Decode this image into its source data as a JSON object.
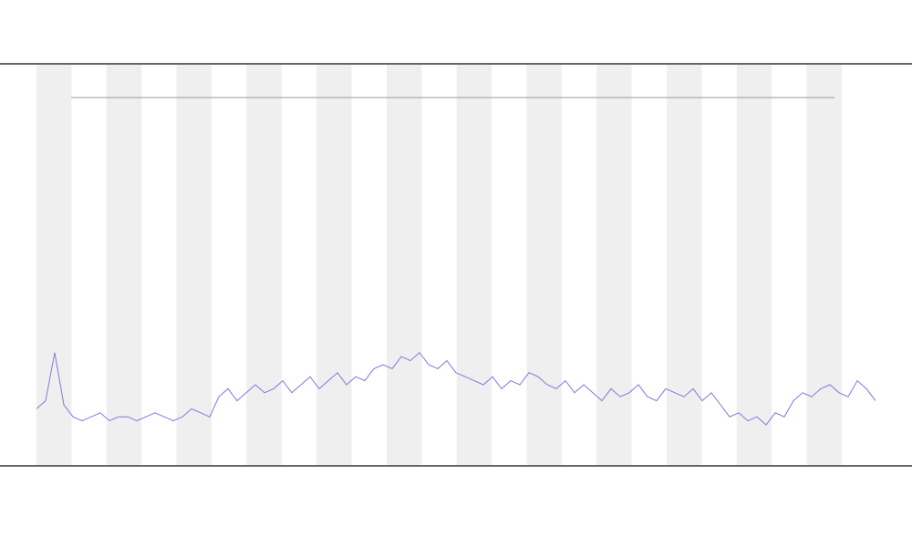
{
  "chart_data": {
    "type": "line",
    "x": [
      0,
      1,
      2,
      3,
      4,
      5,
      6,
      7,
      8,
      9,
      10,
      11,
      12,
      13,
      14,
      15,
      16,
      17,
      18,
      19,
      20,
      21,
      22,
      23,
      24,
      25,
      26,
      27,
      28,
      29,
      30,
      31,
      32,
      33,
      34,
      35,
      36,
      37,
      38,
      39,
      40,
      41,
      42,
      43,
      44,
      45,
      46,
      47,
      48,
      49,
      50,
      51,
      52,
      53,
      54,
      55,
      56,
      57,
      58,
      59,
      60,
      61,
      62,
      63,
      64,
      65,
      66,
      67,
      68,
      69,
      70,
      71,
      72,
      73,
      74,
      75,
      76,
      77,
      78,
      79,
      80,
      81,
      82,
      83,
      84,
      85,
      86,
      87,
      88,
      89,
      90,
      91,
      92
    ],
    "xlim": [
      0,
      92
    ],
    "ylim": [
      0,
      100
    ],
    "series": [
      {
        "color": "#7b7bdc",
        "values": [
          14,
          16,
          28,
          15,
          12,
          11,
          12,
          13,
          11,
          12,
          12,
          11,
          12,
          13,
          12,
          11,
          12,
          14,
          13,
          12,
          17,
          19,
          16,
          18,
          20,
          18,
          19,
          21,
          18,
          20,
          22,
          19,
          21,
          23,
          20,
          22,
          21,
          24,
          25,
          24,
          27,
          26,
          28,
          25,
          24,
          26,
          23,
          22,
          21,
          20,
          22,
          19,
          21,
          20,
          23,
          22,
          20,
          19,
          21,
          18,
          20,
          18,
          16,
          19,
          17,
          18,
          20,
          17,
          16,
          19,
          18,
          17,
          19,
          16,
          18,
          15,
          12,
          13,
          11,
          12,
          10,
          13,
          12,
          16,
          18,
          17,
          19,
          20,
          18,
          17,
          21,
          19,
          16
        ]
      }
    ]
  }
}
